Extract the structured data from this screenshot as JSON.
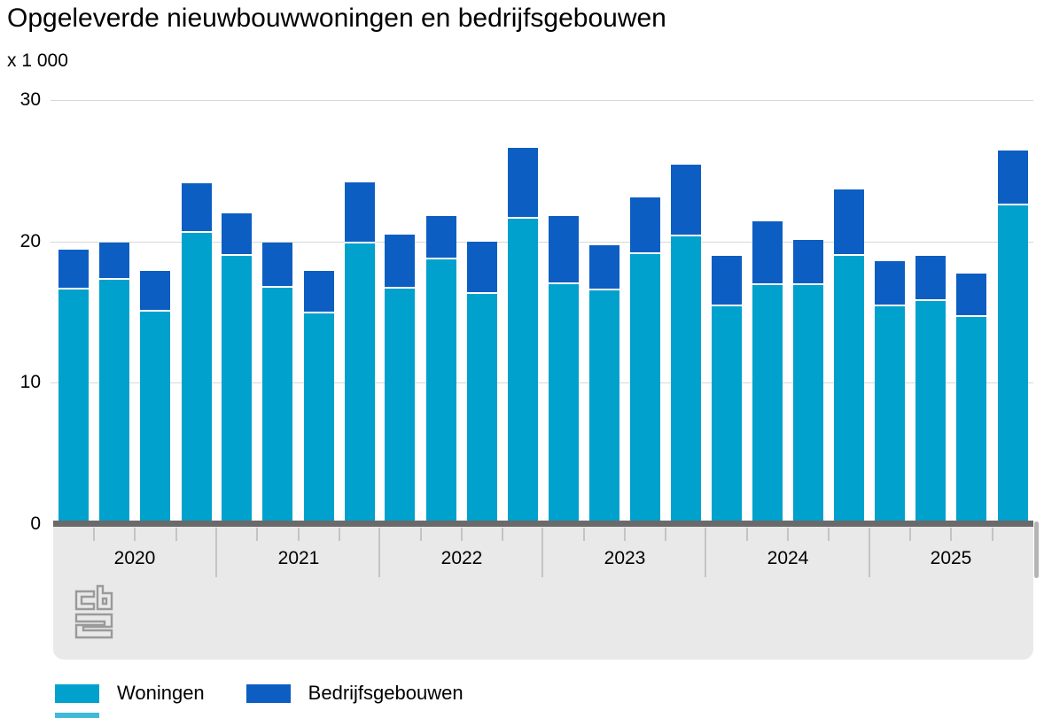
{
  "title": "Opgeleverde nieuwbouwwoningen en bedrijfsgebouwen",
  "unit_label": "x 1 000",
  "y_axis": {
    "tick_labels": [
      "30",
      "20",
      "10",
      "0"
    ],
    "tick_values": [
      30,
      20,
      10,
      0
    ]
  },
  "x_axis": {
    "years": [
      "2020",
      "2021",
      "2022",
      "2023",
      "2024",
      "2025"
    ],
    "quarters_per_year": 4
  },
  "legend": {
    "items": [
      {
        "label": "Woningen",
        "color": "#00a1cd"
      },
      {
        "label": "Bedrijfsgebouwen",
        "color": "#0d5ec2"
      }
    ]
  },
  "logo_name": "cbs-logo",
  "colors": {
    "woningen": "#00a1cd",
    "bedrijfsgebouwen": "#0d5ec2",
    "gridline": "#d8d8d8",
    "axis_baseline": "#6a6a6a",
    "footer_background": "#e9e9e9",
    "tick": "#c4c4c4",
    "logo_gray": "#9a9a9a"
  },
  "chart_data": {
    "type": "bar",
    "stacked": true,
    "title": "Opgeleverde nieuwbouwwoningen en bedrijfsgebouwen",
    "unit": "x 1 000",
    "xlabel": "",
    "ylabel": "x 1 000",
    "ylim": [
      0,
      30
    ],
    "gridlines": [
      10,
      20,
      30
    ],
    "legend_position": "bottom",
    "years": [
      "2020",
      "2021",
      "2022",
      "2023",
      "2024",
      "2025"
    ],
    "quarters_per_year": 4,
    "series": [
      {
        "name": "Woningen",
        "color": "#00a1cd",
        "values": [
          16.6,
          17.3,
          15.0,
          20.6,
          19.0,
          16.7,
          14.9,
          19.9,
          16.7,
          18.7,
          16.3,
          21.6,
          17.0,
          16.5,
          19.1,
          20.3,
          15.4,
          16.9,
          16.9,
          19.0,
          15.4,
          15.8,
          14.6,
          22.5
        ]
      },
      {
        "name": "Bedrijfsgebouwen",
        "color": "#0d5ec2",
        "values": [
          2.8,
          2.6,
          2.9,
          3.5,
          3.0,
          3.2,
          3.0,
          4.3,
          3.8,
          3.1,
          3.7,
          5.0,
          4.8,
          3.2,
          4.0,
          5.1,
          3.6,
          4.5,
          3.2,
          4.7,
          3.2,
          3.2,
          3.1,
          3.9
        ]
      }
    ]
  }
}
